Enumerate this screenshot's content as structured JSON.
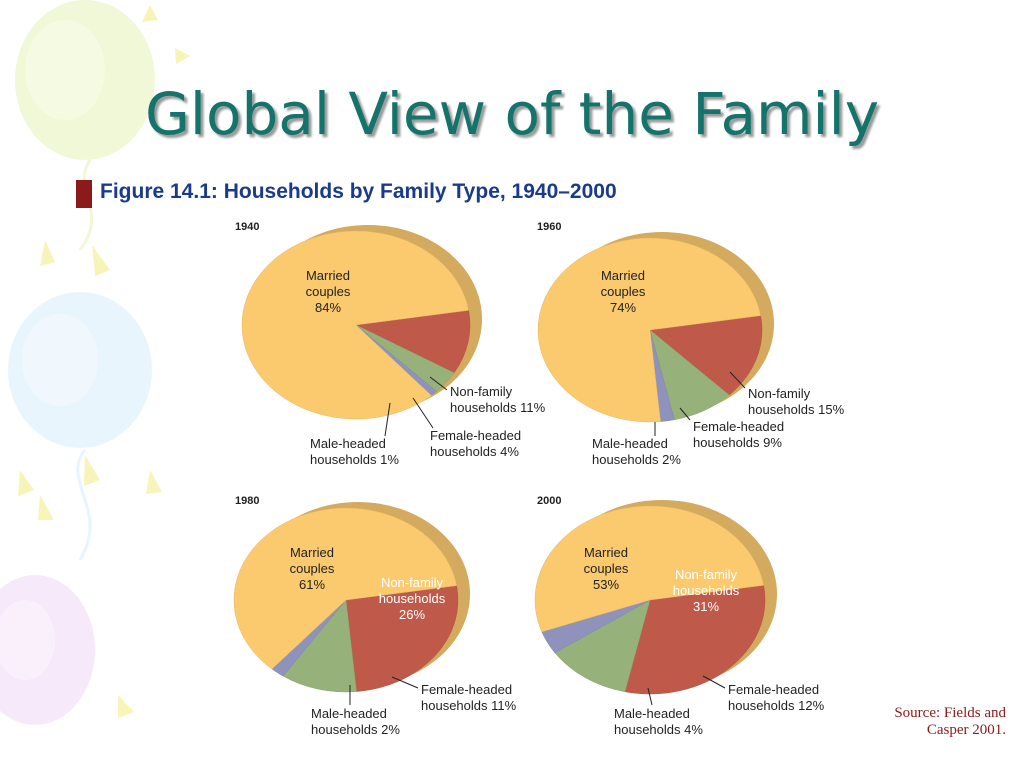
{
  "slide": {
    "title": "Global View of the Family",
    "subtitle": "Figure 14.1: Households by Family Type, 1940–2000",
    "source_line1": "Source: Fields and",
    "source_line2": "Casper 2001."
  },
  "colors": {
    "title": "#14736b",
    "subtitle": "#1a3b8a",
    "bullet": "#8c1a1a",
    "married": "#fbc96e",
    "nonfamily": "#bf5a4a",
    "female": "#96b27a",
    "male": "#8f92ba",
    "rim": "#d3aa5e"
  },
  "chart_data": [
    {
      "type": "pie",
      "title": "1940",
      "categories": [
        "Married couples",
        "Non-family households",
        "Female-headed households",
        "Male-headed households"
      ],
      "values": [
        84,
        11,
        4,
        1
      ],
      "labels": [
        [
          "Married",
          "couples",
          "84%"
        ],
        [
          "Non-family",
          "households 11%"
        ],
        [
          "Female-headed",
          "households 4%"
        ],
        [
          "Male-headed",
          "households 1%"
        ]
      ]
    },
    {
      "type": "pie",
      "title": "1960",
      "categories": [
        "Married couples",
        "Non-family households",
        "Female-headed households",
        "Male-headed households"
      ],
      "values": [
        74,
        15,
        9,
        2
      ],
      "labels": [
        [
          "Married",
          "couples",
          "74%"
        ],
        [
          "Non-family",
          "households 15%"
        ],
        [
          "Female-headed",
          "households 9%"
        ],
        [
          "Male-headed",
          "households 2%"
        ]
      ]
    },
    {
      "type": "pie",
      "title": "1980",
      "categories": [
        "Married couples",
        "Non-family households",
        "Female-headed households",
        "Male-headed households"
      ],
      "values": [
        61,
        26,
        11,
        2
      ],
      "labels": [
        [
          "Married",
          "couples",
          "61%"
        ],
        [
          "Non-family",
          "households",
          "26%"
        ],
        [
          "Female-headed",
          "households 11%"
        ],
        [
          "Male-headed",
          "households 2%"
        ]
      ]
    },
    {
      "type": "pie",
      "title": "2000",
      "categories": [
        "Married couples",
        "Non-family households",
        "Female-headed households",
        "Male-headed households"
      ],
      "values": [
        53,
        31,
        12,
        4
      ],
      "labels": [
        [
          "Married",
          "couples",
          "53%"
        ],
        [
          "Non-family",
          "households",
          "31%"
        ],
        [
          "Female-headed",
          "households 12%"
        ],
        [
          "Male-headed",
          "households 4%"
        ]
      ]
    }
  ]
}
